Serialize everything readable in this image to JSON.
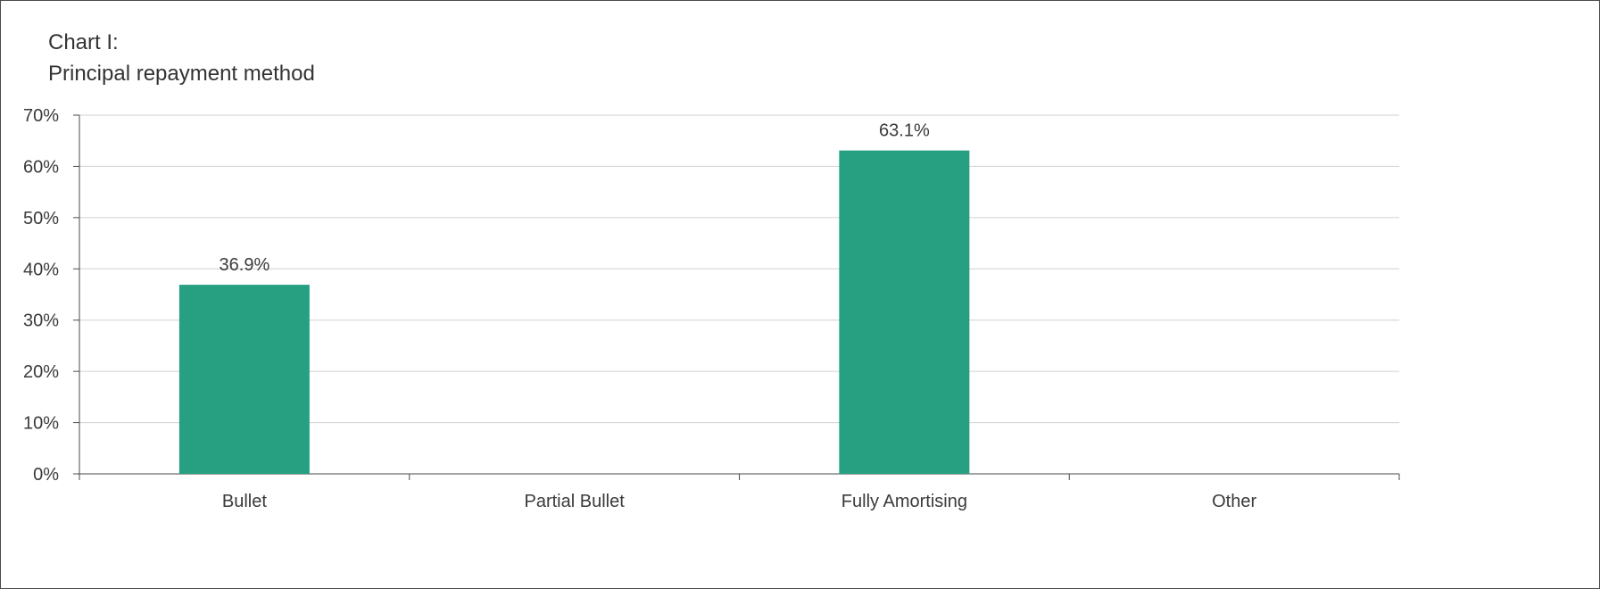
{
  "chart_data": {
    "type": "bar",
    "title": [
      "Chart I:",
      "Principal repayment method"
    ],
    "categories": [
      "Bullet",
      "Partial Bullet",
      "Fully Amortising",
      "Other"
    ],
    "values": [
      36.9,
      null,
      63.1,
      null
    ],
    "data_labels": [
      "36.9%",
      "",
      "63.1%",
      ""
    ],
    "y_ticks": [
      "0%",
      "10%",
      "20%",
      "30%",
      "40%",
      "50%",
      "60%",
      "70%"
    ],
    "ylim": [
      0,
      70
    ],
    "y_unit": "%",
    "grid": true,
    "legend": "none",
    "bar_color": "#27a082",
    "grid_color": "#d0d0d0",
    "axis_color": "#4a4a4a"
  }
}
